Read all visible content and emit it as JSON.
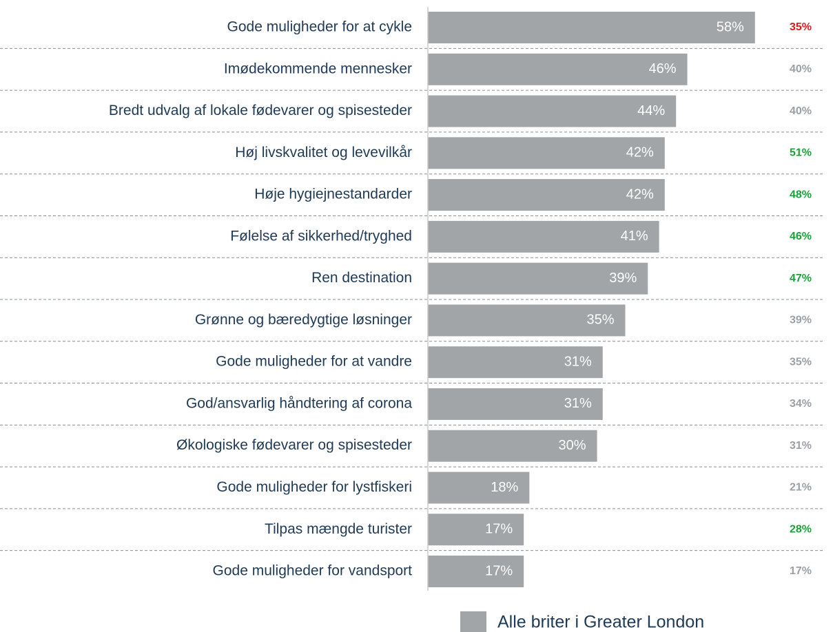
{
  "chart_data": {
    "type": "hbar",
    "categories": [
      "Gode muligheder for at cykle",
      "Imødekommende mennesker",
      "Bredt udvalg af lokale fødevarer og spisesteder",
      "Høj livskvalitet og levevilkår",
      "Høje hygiejnestandarder",
      "Følelse af sikkerhed/tryghed",
      "Ren destination",
      "Grønne og bæredygtige løsninger",
      "Gode muligheder for at vandre",
      "God/ansvarlig håndtering af corona",
      "Økologiske fødevarer og spisesteder",
      "Gode muligheder for lystfiskeri",
      "Tilpas mængde turister",
      "Gode muligheder for vandsport"
    ],
    "series": [
      {
        "name": "Alle briter i Greater London",
        "color": "#a1a5a8",
        "values": [
          58,
          46,
          44,
          42,
          42,
          41,
          39,
          35,
          31,
          31,
          30,
          18,
          17,
          17
        ],
        "value_labels": [
          "58%",
          "46%",
          "44%",
          "42%",
          "42%",
          "41%",
          "39%",
          "35%",
          "31%",
          "31%",
          "30%",
          "18%",
          "17%",
          "17%"
        ]
      }
    ],
    "comparison": {
      "values": [
        35,
        40,
        40,
        51,
        48,
        46,
        47,
        39,
        35,
        34,
        31,
        21,
        28,
        17
      ],
      "value_labels": [
        "35%",
        "40%",
        "40%",
        "51%",
        "48%",
        "46%",
        "47%",
        "39%",
        "35%",
        "34%",
        "31%",
        "21%",
        "28%",
        "17%"
      ],
      "colors": [
        "#e3171e",
        "#9aa0a6",
        "#9aa0a6",
        "#1aa23a",
        "#1aa23a",
        "#1aa23a",
        "#1aa23a",
        "#9aa0a6",
        "#9aa0a6",
        "#9aa0a6",
        "#9aa0a6",
        "#9aa0a6",
        "#1aa23a",
        "#9aa0a6"
      ]
    },
    "xlim": [
      0,
      70
    ]
  }
}
